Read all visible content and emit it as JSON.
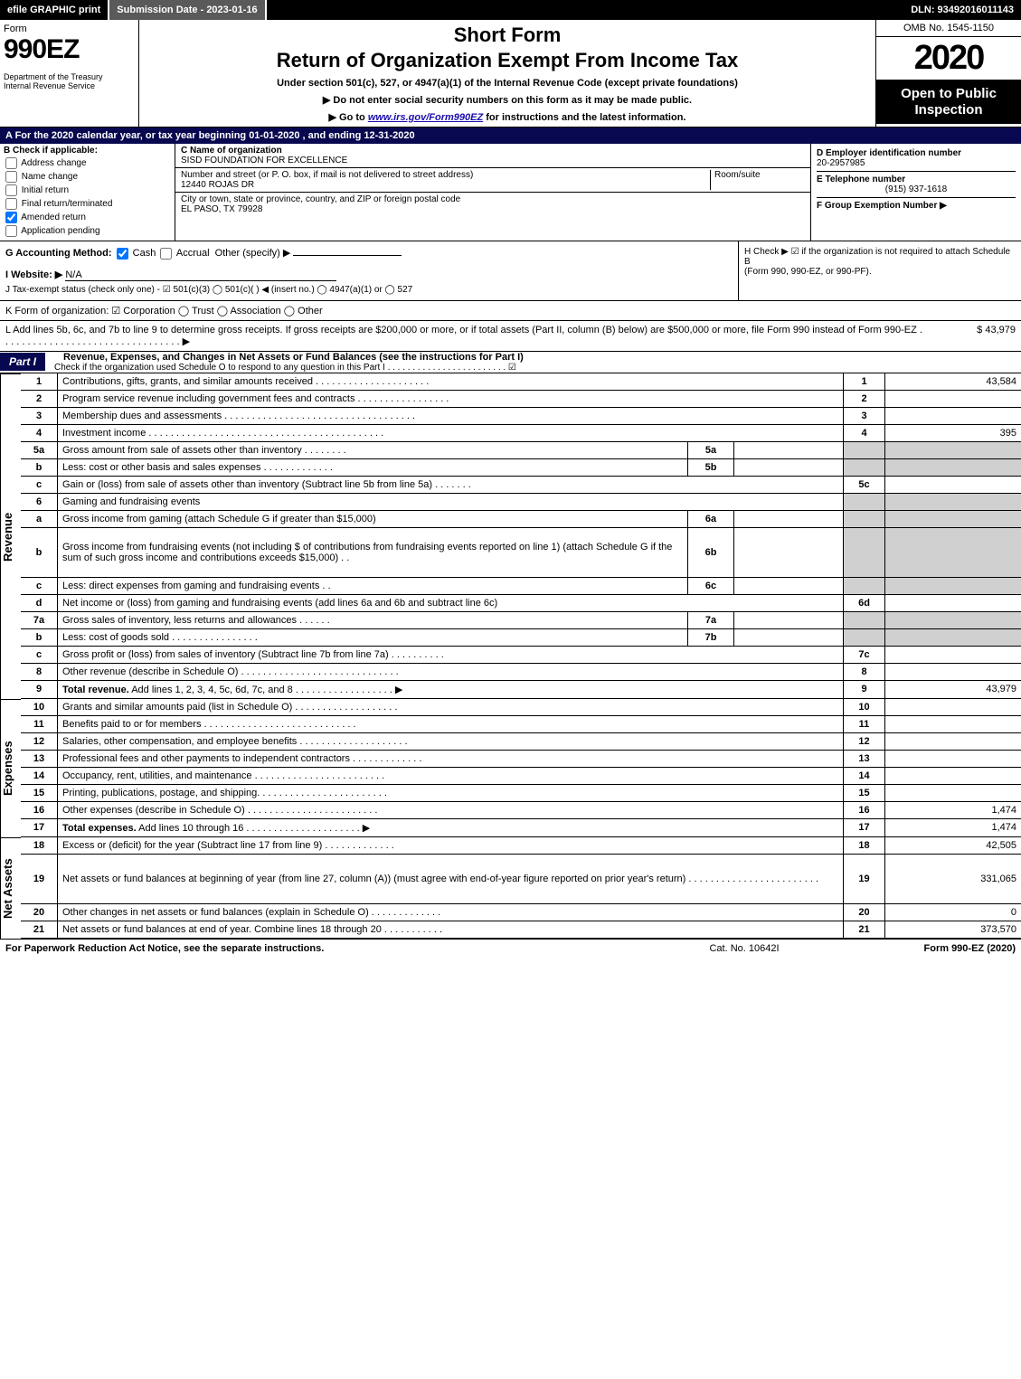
{
  "topbar": {
    "efile": "efile GRAPHIC print",
    "subdate": "Submission Date - 2023-01-16",
    "dln": "DLN: 93492016011143"
  },
  "header": {
    "formword": "Form",
    "formnum": "990EZ",
    "dept": "Department of the Treasury",
    "irs": "Internal Revenue Service",
    "short": "Short Form",
    "title": "Return of Organization Exempt From Income Tax",
    "sub": "Under section 501(c), 527, or 4947(a)(1) of the Internal Revenue Code (except private foundations)",
    "sub2": "▶ Do not enter social security numbers on this form as it may be made public.",
    "sub3": "▶ Go to www.irs.gov/Form990EZ for instructions and the latest information.",
    "omb": "OMB No. 1545-1150",
    "year": "2020",
    "open": "Open to Public Inspection"
  },
  "period": "A For the 2020 calendar year, or tax year beginning 01-01-2020 , and ending 12-31-2020",
  "boxB": {
    "label": "B Check if applicable:",
    "opts": [
      "Address change",
      "Name change",
      "Initial return",
      "Final return/terminated",
      "Amended return",
      "Application pending"
    ],
    "checked": 4
  },
  "boxC": {
    "label": "C Name of organization",
    "name": "SISD FOUNDATION FOR EXCELLENCE",
    "addr_label": "Number and street (or P. O. box, if mail is not delivered to street address)",
    "room_label": "Room/suite",
    "addr": "12440 ROJAS DR",
    "city_label": "City or town, state or province, country, and ZIP or foreign postal code",
    "city": "EL PASO, TX  79928"
  },
  "boxD": {
    "label": "D Employer identification number",
    "val": "20-2957985"
  },
  "boxE": {
    "label": "E Telephone number",
    "val": "(915) 937-1618"
  },
  "boxF": {
    "label": "F Group Exemption Number  ▶"
  },
  "lineG": {
    "label": "G Accounting Method:",
    "cash": "Cash",
    "accrual": "Accrual",
    "other": "Other (specify) ▶"
  },
  "lineH": {
    "label": "H  Check ▶ ☑ if the organization is not required to attach Schedule B",
    "sub": "(Form 990, 990-EZ, or 990-PF)."
  },
  "lineI": {
    "label": "I Website: ▶",
    "val": "N/A"
  },
  "lineJ": "J Tax-exempt status (check only one) - ☑ 501(c)(3) ◯ 501(c)(  ) ◀ (insert no.) ◯ 4947(a)(1) or ◯ 527",
  "lineK": "K Form of organization:  ☑ Corporation  ◯ Trust  ◯ Association  ◯ Other",
  "lineL": {
    "text": "L Add lines 5b, 6c, and 7b to line 9 to determine gross receipts. If gross receipts are $200,000 or more, or if total assets (Part II, column (B) below) are $500,000 or more, file Form 990 instead of Form 990-EZ . . . . . . . . . . . . . . . . . . . . . . . . . . . . . . . . .  ▶",
    "amount": "$ 43,979"
  },
  "part1": {
    "label": "Part I",
    "title": "Revenue, Expenses, and Changes in Net Assets or Fund Balances (see the instructions for Part I)",
    "check": "Check if the organization used Schedule O to respond to any question in this Part I . . . . . . . . . . . . . . . . . . . . . . . . ☑"
  },
  "sections": {
    "revenue": "Revenue",
    "expenses": "Expenses",
    "netassets": "Net Assets"
  },
  "rows": [
    {
      "n": "1",
      "desc": "Contributions, gifts, grants, and similar amounts received . . . . . . . . . . . . . . . . . . . . .",
      "code": "1",
      "amt": "43,584"
    },
    {
      "n": "2",
      "desc": "Program service revenue including government fees and contracts . . . . . . . . . . . . . . . . .",
      "code": "2",
      "amt": ""
    },
    {
      "n": "3",
      "desc": "Membership dues and assessments . . . . . . . . . . . . . . . . . . . . . . . . . . . . . . . . . . .",
      "code": "3",
      "amt": ""
    },
    {
      "n": "4",
      "desc": "Investment income . . . . . . . . . . . . . . . . . . . . . . . . . . . . . . . . . . . . . . . . . . .",
      "code": "4",
      "amt": "395"
    },
    {
      "n": "5a",
      "desc": "Gross amount from sale of assets other than inventory . . . . . . . .",
      "sub": "5a",
      "subval": "",
      "code": "",
      "amt": "",
      "shaded": true
    },
    {
      "n": "b",
      "desc": "Less: cost or other basis and sales expenses . . . . . . . . . . . . .",
      "sub": "5b",
      "subval": "",
      "code": "",
      "amt": "",
      "shaded": true
    },
    {
      "n": "c",
      "desc": "Gain or (loss) from sale of assets other than inventory (Subtract line 5b from line 5a) . . . . . . .",
      "code": "5c",
      "amt": ""
    },
    {
      "n": "6",
      "desc": "Gaming and fundraising events",
      "code": "",
      "amt": "",
      "shaded": true,
      "noborder": true
    },
    {
      "n": "a",
      "desc": "Gross income from gaming (attach Schedule G if greater than $15,000)",
      "sub": "6a",
      "subval": "",
      "code": "",
      "amt": "",
      "shaded": true
    },
    {
      "n": "b",
      "desc": "Gross income from fundraising events (not including $                     of contributions from fundraising events reported on line 1) (attach Schedule G if the sum of such gross income and contributions exceeds $15,000)   . .",
      "sub": "6b",
      "subval": "",
      "code": "",
      "amt": "",
      "shaded": true,
      "tall": true
    },
    {
      "n": "c",
      "desc": "Less: direct expenses from gaming and fundraising events   . .",
      "sub": "6c",
      "subval": "",
      "code": "",
      "amt": "",
      "shaded": true
    },
    {
      "n": "d",
      "desc": "Net income or (loss) from gaming and fundraising events (add lines 6a and 6b and subtract line 6c)",
      "code": "6d",
      "amt": ""
    },
    {
      "n": "7a",
      "desc": "Gross sales of inventory, less returns and allowances . . . . . .",
      "sub": "7a",
      "subval": "",
      "code": "",
      "amt": "",
      "shaded": true
    },
    {
      "n": "b",
      "desc": "Less: cost of goods sold        . . . . . . . . . . . . . . . .",
      "sub": "7b",
      "subval": "",
      "code": "",
      "amt": "",
      "shaded": true
    },
    {
      "n": "c",
      "desc": "Gross profit or (loss) from sales of inventory (Subtract line 7b from line 7a) . . . . . . . . . .",
      "code": "7c",
      "amt": ""
    },
    {
      "n": "8",
      "desc": "Other revenue (describe in Schedule O) . . . . . . . . . . . . . . . . . . . . . . . . . . . . .",
      "code": "8",
      "amt": ""
    },
    {
      "n": "9",
      "desc": "Total revenue. Add lines 1, 2, 3, 4, 5c, 6d, 7c, and 8  . . . . . . . . . . . . . . . . . .   ▶",
      "code": "9",
      "amt": "43,979",
      "bold": true
    }
  ],
  "exp_rows": [
    {
      "n": "10",
      "desc": "Grants and similar amounts paid (list in Schedule O) . . . . . . . . . . . . . . . . . . .",
      "code": "10",
      "amt": ""
    },
    {
      "n": "11",
      "desc": "Benefits paid to or for members      . . . . . . . . . . . . . . . . . . . . . . . . . . . .",
      "code": "11",
      "amt": ""
    },
    {
      "n": "12",
      "desc": "Salaries, other compensation, and employee benefits . . . . . . . . . . . . . . . . . . . .",
      "code": "12",
      "amt": ""
    },
    {
      "n": "13",
      "desc": "Professional fees and other payments to independent contractors . . . . . . . . . . . . .",
      "code": "13",
      "amt": ""
    },
    {
      "n": "14",
      "desc": "Occupancy, rent, utilities, and maintenance . . . . . . . . . . . . . . . . . . . . . . . .",
      "code": "14",
      "amt": ""
    },
    {
      "n": "15",
      "desc": "Printing, publications, postage, and shipping. . . . . . . . . . . . . . . . . . . . . . . .",
      "code": "15",
      "amt": ""
    },
    {
      "n": "16",
      "desc": "Other expenses (describe in Schedule O)    . . . . . . . . . . . . . . . . . . . . . . . .",
      "code": "16",
      "amt": "1,474"
    },
    {
      "n": "17",
      "desc": "Total expenses. Add lines 10 through 16    . . . . . . . . . . . . . . . . . . . . .   ▶",
      "code": "17",
      "amt": "1,474",
      "bold": true
    }
  ],
  "na_rows": [
    {
      "n": "18",
      "desc": "Excess or (deficit) for the year (Subtract line 17 from line 9)       . . . . . . . . . . . . .",
      "code": "18",
      "amt": "42,505"
    },
    {
      "n": "19",
      "desc": "Net assets or fund balances at beginning of year (from line 27, column (A)) (must agree with end-of-year figure reported on prior year's return) . . . . . . . . . . . . . . . . . . . . . . . .",
      "code": "19",
      "amt": "331,065",
      "tall": true
    },
    {
      "n": "20",
      "desc": "Other changes in net assets or fund balances (explain in Schedule O) . . . . . . . . . . . . .",
      "code": "20",
      "amt": "0"
    },
    {
      "n": "21",
      "desc": "Net assets or fund balances at end of year. Combine lines 18 through 20 . . . . . . . . . . .",
      "code": "21",
      "amt": "373,570"
    }
  ],
  "footer": {
    "left": "For Paperwork Reduction Act Notice, see the separate instructions.",
    "mid": "Cat. No. 10642I",
    "right": "Form 990-EZ (2020)"
  },
  "colors": {
    "darkblue": "#080850",
    "shade": "#d0d0d0"
  }
}
